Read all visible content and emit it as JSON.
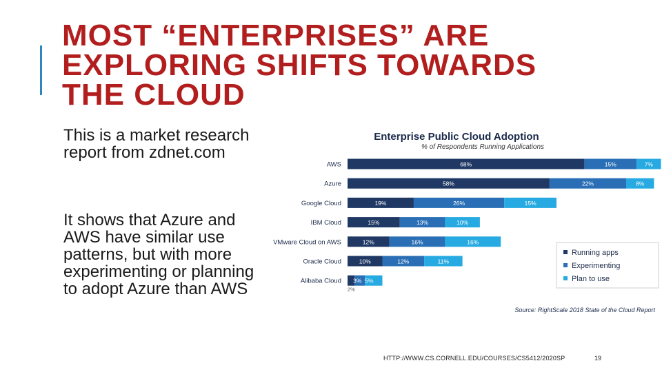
{
  "slide": {
    "title_lines": [
      "MOST “ENTERPRISES” ARE",
      "EXPLORING SHIFTS TOWARDS",
      "THE CLOUD"
    ],
    "paragraph1_lines": [
      "This is a market research",
      "report from zdnet.com"
    ],
    "paragraph2_lines": [
      "It shows that Azure and",
      "AWS have similar use",
      "patterns, but with more",
      "experimenting or planning",
      "to adopt Azure than AWS"
    ],
    "footer_url": "HTTP://WWW.CS.CORNELL.EDU/COURSES/CS5412/2020SP",
    "page_number": "19"
  },
  "colors": {
    "title": "#b21e1e",
    "accent_bar": "#2e86c1",
    "running": "#1f3864",
    "experimenting": "#2a6fb6",
    "plan": "#27aae1"
  },
  "chart_data": {
    "type": "bar",
    "orientation": "horizontal",
    "stacked": true,
    "title": "Enterprise Public Cloud Adoption",
    "subtitle": "% of Respondents Running Applications",
    "source": "Source: RightScale 2018 State of the Cloud Report",
    "categories": [
      "AWS",
      "Azure",
      "Google Cloud",
      "IBM Cloud",
      "VMware Cloud on AWS",
      "Oracle Cloud",
      "Alibaba Cloud"
    ],
    "series": [
      {
        "name": "Running apps",
        "color": "#1f3864",
        "values": [
          68,
          58,
          19,
          15,
          12,
          10,
          2
        ],
        "labels": [
          "68%",
          "58%",
          "19%",
          "15%",
          "12%",
          "10%",
          "2%"
        ]
      },
      {
        "name": "Experimenting",
        "color": "#2a6fb6",
        "values": [
          15,
          22,
          26,
          13,
          16,
          12,
          3
        ],
        "labels": [
          "15%",
          "22%",
          "26%",
          "13%",
          "16%",
          "12%",
          "3%"
        ]
      },
      {
        "name": "Plan to use",
        "color": "#27aae1",
        "values": [
          7,
          8,
          15,
          10,
          16,
          11,
          5
        ],
        "labels": [
          "7%",
          "8%",
          "15%",
          "10%",
          "16%",
          "11%",
          "5%"
        ]
      }
    ],
    "legend_position": "right",
    "xlim": [
      0,
      100
    ],
    "grid": false
  }
}
